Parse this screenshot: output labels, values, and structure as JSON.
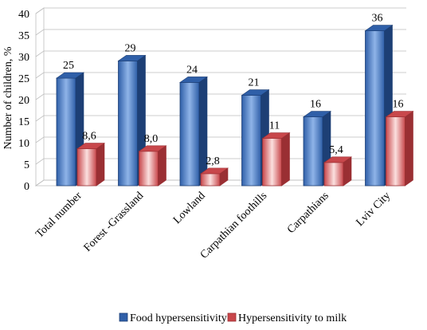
{
  "chart_data": {
    "type": "bar",
    "title": "",
    "xlabel": "",
    "ylabel": "Number of children, %",
    "ylim": [
      0,
      40
    ],
    "yticks": [
      0,
      5,
      10,
      15,
      20,
      25,
      30,
      35,
      40
    ],
    "grid": true,
    "legend_position": "bottom",
    "categories": [
      "Total number",
      "Forest -Grassland",
      "Lowland",
      "Carpathian foothills",
      "Carpathians",
      "Lviv City"
    ],
    "series": [
      {
        "name": "Food hypersensitivity",
        "values": [
          25,
          29,
          24,
          21,
          16,
          36
        ],
        "labels": [
          "25",
          "29",
          "24",
          "21",
          "16",
          "36"
        ],
        "color": "#2f5fa8",
        "color_light": "#8fb4e8",
        "color_dark": "#1d3f75"
      },
      {
        "name": "Hypersensitivity to milk",
        "values": [
          8.6,
          8.0,
          2.8,
          11,
          5.4,
          16
        ],
        "labels": [
          "8,6",
          "8,0",
          "2,8",
          "11",
          "5,4",
          "16"
        ],
        "color": "#c8474b",
        "color_light": "#fbe0df",
        "color_dark": "#9a2f33"
      }
    ]
  }
}
